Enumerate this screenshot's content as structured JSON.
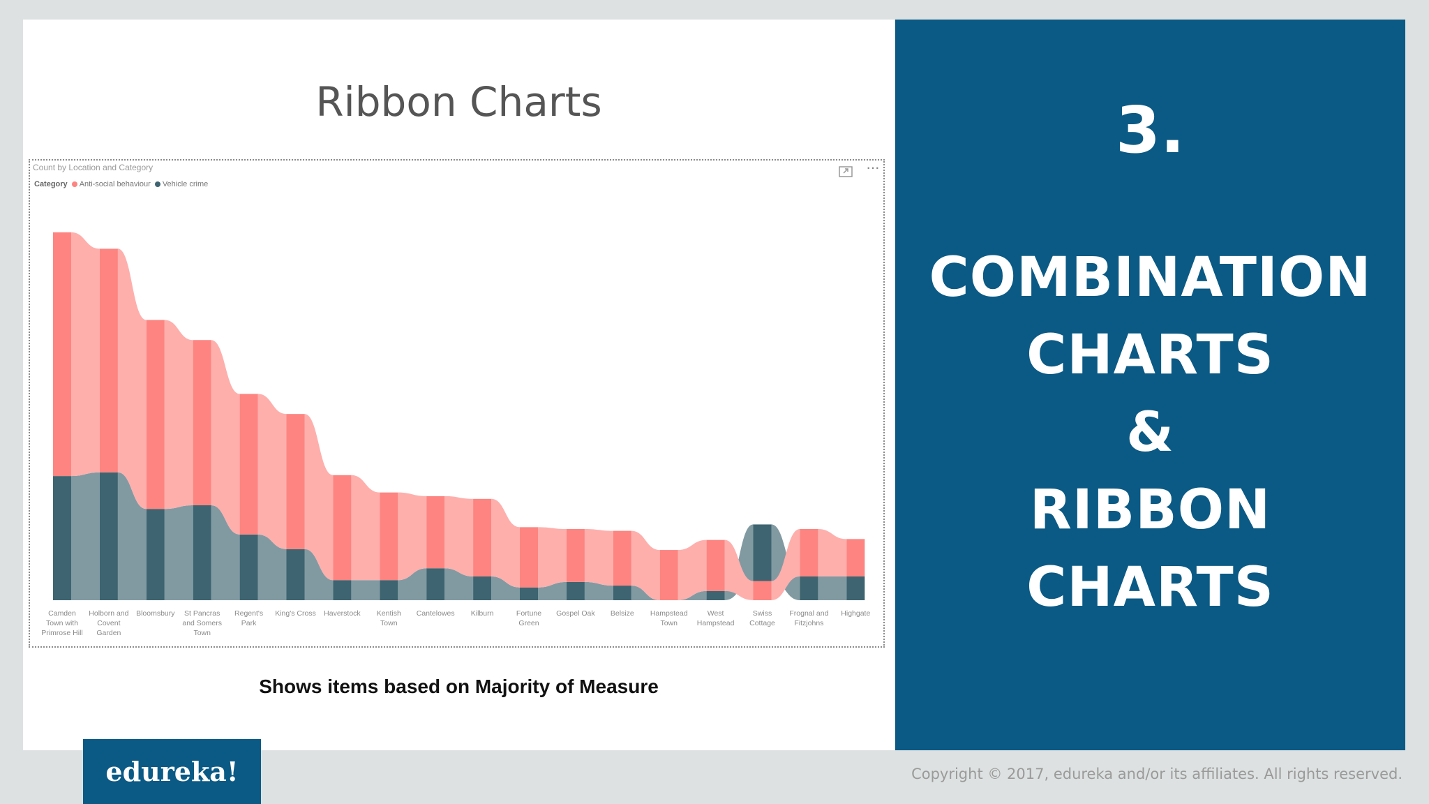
{
  "slide": {
    "title": "Ribbon Charts",
    "caption": "Shows items based on Majority of Measure"
  },
  "side_panel": {
    "number": "3.",
    "heading_lines": [
      "Combination",
      "Charts",
      "&",
      "Ribbon",
      "Charts"
    ]
  },
  "footer": {
    "logo": "edureka!",
    "copyright": "Copyright © 2017, edureka and/or its affiliates. All rights reserved."
  },
  "icons": {
    "focus_mode": "focus-mode-icon",
    "more_options": "more-options-icon"
  },
  "chart_data": {
    "type": "ribbon",
    "title": "Count by Location and Category",
    "legend_title": "Category",
    "legend_position": "top-left",
    "grid": false,
    "categories": [
      [
        "Camden",
        "Town with",
        "Primrose Hill"
      ],
      [
        "Holborn and",
        "Covent",
        "Garden"
      ],
      [
        "Bloomsbury"
      ],
      [
        "St Pancras",
        "and Somers",
        "Town"
      ],
      [
        "Regent's",
        "Park"
      ],
      [
        "King's Cross"
      ],
      [
        "Haverstock"
      ],
      [
        "Kentish",
        "Town"
      ],
      [
        "Cantelowes"
      ],
      [
        "Kilburn"
      ],
      [
        "Fortune",
        "Green"
      ],
      [
        "Gospel Oak"
      ],
      [
        "Belsize"
      ],
      [
        "Hampstead",
        "Town"
      ],
      [
        "West",
        "Hampstead"
      ],
      [
        "Swiss",
        "Cottage"
      ],
      [
        "Frognal and",
        "Fitzjohns"
      ],
      [
        "Highgate"
      ]
    ],
    "series": [
      {
        "name": "Anti-social behaviour",
        "color": "#fd8480",
        "values": [
          267,
          245,
          207,
          181,
          154,
          148,
          115,
          96,
          79,
          85,
          66,
          58,
          60,
          55,
          56,
          21,
          52,
          41
        ]
      },
      {
        "name": "Vehicle crime",
        "color": "#3d6470",
        "values": [
          136,
          140,
          100,
          104,
          72,
          56,
          22,
          22,
          35,
          26,
          14,
          20,
          16,
          0,
          10,
          62,
          26,
          26
        ]
      }
    ]
  }
}
